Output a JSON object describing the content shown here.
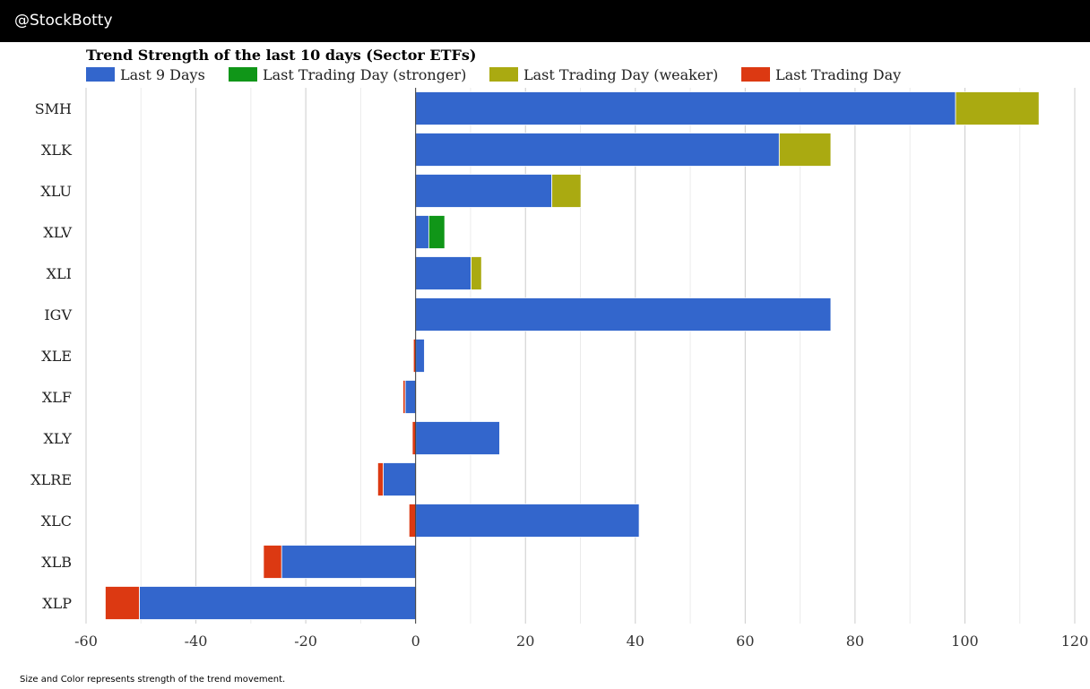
{
  "header": {
    "handle": "@StockBotty"
  },
  "footnote": "Size and Color represents strength of the trend movement.",
  "colors": {
    "last9": "#3366cc",
    "stronger": "#109618",
    "weaker": "#aaaa11",
    "lastday": "#dc3912",
    "grid_major": "#cccccc",
    "grid_minor": "#ebebeb",
    "zero_line": "#333333"
  },
  "chart_data": {
    "type": "bar",
    "orientation": "horizontal",
    "stacked": true,
    "title": "Trend Strength of the last 10 days (Sector ETFs)",
    "legend": [
      {
        "key": "last9",
        "label": "Last 9 Days"
      },
      {
        "key": "stronger",
        "label": "Last Trading Day (stronger)"
      },
      {
        "key": "weaker",
        "label": "Last Trading Day (weaker)"
      },
      {
        "key": "lastday",
        "label": "Last Trading Day"
      }
    ],
    "legend_position": "top-left",
    "xlim": [
      -60,
      120
    ],
    "xticks": [
      -60,
      -40,
      -20,
      0,
      20,
      40,
      60,
      80,
      100,
      120
    ],
    "minor_step": 10,
    "categories": [
      "SMH",
      "XLK",
      "XLU",
      "XLV",
      "XLI",
      "IGV",
      "XLE",
      "XLF",
      "XLY",
      "XLRE",
      "XLC",
      "XLB",
      "XLP"
    ],
    "series": [
      {
        "name": "Last 9 Days",
        "key": "last9",
        "values": [
          98.3,
          66.2,
          24.8,
          2.4,
          10.1,
          75.6,
          1.6,
          -1.9,
          15.3,
          -5.9,
          40.7,
          -24.4,
          -50.3
        ]
      },
      {
        "name": "Last Trading Day (stronger)",
        "key": "stronger",
        "values": [
          0,
          0,
          0,
          2.9,
          0,
          0,
          0,
          0,
          0,
          0,
          0,
          0,
          0
        ]
      },
      {
        "name": "Last Trading Day (weaker)",
        "key": "weaker",
        "values": [
          15.2,
          9.4,
          5.3,
          0,
          1.9,
          0,
          0,
          0,
          0,
          0,
          0,
          0,
          0
        ]
      },
      {
        "name": "Last Trading Day",
        "key": "lastday",
        "values": [
          0,
          0,
          0,
          0,
          0,
          0,
          -0.4,
          -0.4,
          -0.6,
          -1.0,
          -1.2,
          -3.3,
          -6.2
        ]
      }
    ]
  }
}
